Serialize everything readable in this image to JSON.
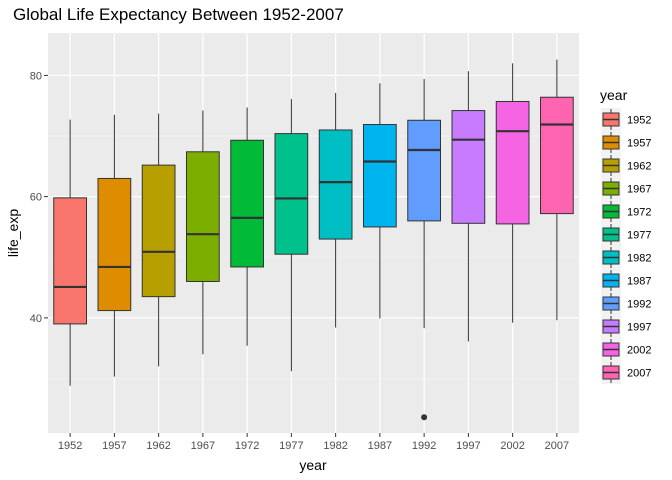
{
  "chart_data": {
    "type": "boxplot",
    "title": "Global Life Expectancy Between 1952-2007",
    "xlabel": "year",
    "ylabel": "life_exp",
    "ylim": [
      21,
      87
    ],
    "yticks": [
      40,
      60,
      80
    ],
    "grid": true,
    "legend": {
      "title": "year",
      "placement": "right"
    },
    "categories": [
      "1952",
      "1957",
      "1962",
      "1967",
      "1972",
      "1977",
      "1982",
      "1987",
      "1992",
      "1997",
      "2002",
      "2007"
    ],
    "colors": [
      "#F8766D",
      "#DE8C00",
      "#B79F00",
      "#7CAE00",
      "#00BA38",
      "#00C08B",
      "#00BFC4",
      "#00B4F0",
      "#619CFF",
      "#C77CFF",
      "#F564E3",
      "#FF64B0"
    ],
    "boxes": [
      {
        "min": 28.8,
        "q1": 39.0,
        "median": 45.1,
        "q3": 59.8,
        "max": 72.7,
        "outliers": []
      },
      {
        "min": 30.3,
        "q1": 41.2,
        "median": 48.4,
        "q3": 63.0,
        "max": 73.5,
        "outliers": []
      },
      {
        "min": 32.0,
        "q1": 43.5,
        "median": 50.9,
        "q3": 65.2,
        "max": 73.7,
        "outliers": []
      },
      {
        "min": 34.0,
        "q1": 46.0,
        "median": 53.8,
        "q3": 67.4,
        "max": 74.2,
        "outliers": []
      },
      {
        "min": 35.4,
        "q1": 48.4,
        "median": 56.5,
        "q3": 69.3,
        "max": 74.7,
        "outliers": []
      },
      {
        "min": 31.2,
        "q1": 50.5,
        "median": 59.7,
        "q3": 70.4,
        "max": 76.1,
        "outliers": []
      },
      {
        "min": 38.4,
        "q1": 53.0,
        "median": 62.4,
        "q3": 71.0,
        "max": 77.1,
        "outliers": []
      },
      {
        "min": 39.9,
        "q1": 55.0,
        "median": 65.8,
        "q3": 71.9,
        "max": 78.7,
        "outliers": []
      },
      {
        "min": 38.3,
        "q1": 56.0,
        "median": 67.7,
        "q3": 72.6,
        "max": 79.4,
        "outliers": [
          23.6
        ]
      },
      {
        "min": 36.1,
        "q1": 55.6,
        "median": 69.4,
        "q3": 74.2,
        "max": 80.7,
        "outliers": []
      },
      {
        "min": 39.2,
        "q1": 55.5,
        "median": 70.8,
        "q3": 75.7,
        "max": 82.0,
        "outliers": []
      },
      {
        "min": 39.6,
        "q1": 57.2,
        "median": 71.9,
        "q3": 76.4,
        "max": 82.6,
        "outliers": []
      }
    ]
  }
}
